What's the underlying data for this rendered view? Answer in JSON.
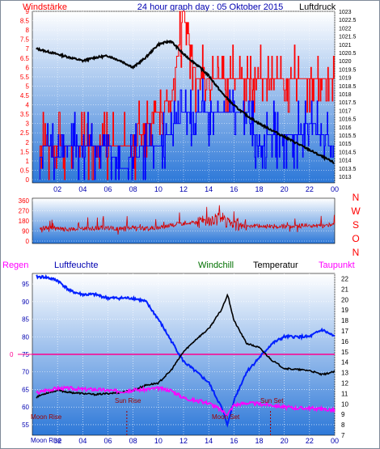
{
  "header": {
    "left": "Windstärke",
    "center": "24 hour graph day : 05 Oktober 2015",
    "right": "Luftdruck"
  },
  "colors": {
    "frame": "#7f8a99",
    "panel_top": "#ffffff",
    "panel_bottom": "#2d78d8",
    "wind_gust": "#ff0000",
    "wind_avg": "#0000ff",
    "pressure": "#000000",
    "direction": "#d80000",
    "humidity": "#0020ff",
    "temperature": "#000000",
    "dewpoint": "#ff00ff",
    "windchill": "#007000",
    "rain_line": "#ff0090",
    "label_red": "#ff0000",
    "label_blue": "#0000b0"
  },
  "chart_data": [
    {
      "type": "line",
      "panel": "wind-pressure",
      "x_ticks": [
        "02",
        "04",
        "06",
        "08",
        "10",
        "12",
        "14",
        "16",
        "18",
        "20",
        "22",
        "00"
      ],
      "left_axis_label": "Windstärke",
      "right_axis_label": "Luftdruck",
      "left_ticks": [
        "0",
        "0.5",
        "1",
        "1.5",
        "2",
        "2.5",
        "3",
        "3.5",
        "4",
        "4.5",
        "5",
        "5.5",
        "6",
        "6.5",
        "7",
        "7.5",
        "8",
        "8.5",
        "9"
      ],
      "right_ticks": [
        "1013",
        "1013.5",
        "1014",
        "1014.5",
        "1015",
        "1015.5",
        "1016",
        "1016.5",
        "1017",
        "1017.5",
        "1018",
        "1018.5",
        "1019",
        "1019.5",
        "1020",
        "1020.5",
        "1021",
        "1021.5",
        "1022",
        "1022.5",
        "1023"
      ],
      "ylim_left": [
        0,
        9
      ],
      "ylim_right": [
        1013,
        1023
      ],
      "series": [
        {
          "role": "gust",
          "x": [
            0,
            1,
            2,
            3,
            4,
            5,
            6,
            7,
            8,
            9,
            10,
            11,
            12,
            13,
            14,
            15,
            16,
            17,
            18,
            19,
            20,
            21,
            22,
            23,
            24
          ],
          "values": [
            1.8,
            1.8,
            1.8,
            1.8,
            1.8,
            1.8,
            1.8,
            2.0,
            1.8,
            3.0,
            3.6,
            4.2,
            9.0,
            5.5,
            5.5,
            5.5,
            5.5,
            5.5,
            5.5,
            5.5,
            5.5,
            5.5,
            5.5,
            5.5,
            5.5
          ]
        },
        {
          "role": "average",
          "x": [
            0,
            1,
            2,
            3,
            4,
            5,
            6,
            7,
            8,
            9,
            10,
            11,
            12,
            13,
            14,
            15,
            16,
            17,
            18,
            19,
            20,
            21,
            22,
            23,
            24
          ],
          "values": [
            0,
            1.8,
            1.2,
            1.8,
            1.8,
            1.5,
            1.8,
            0.5,
            1.2,
            1.8,
            1.8,
            2.5,
            3.5,
            3.5,
            3.5,
            3.5,
            3.5,
            3.5,
            1.8,
            2.4,
            2.4,
            2.4,
            3.0,
            2.4,
            1.8
          ]
        },
        {
          "role": "pressure",
          "x": [
            0,
            1,
            2,
            3,
            4,
            5,
            6,
            7,
            8,
            9,
            10,
            11,
            12,
            13,
            14,
            15,
            16,
            17,
            18,
            19,
            20,
            21,
            22,
            23,
            24
          ],
          "values": [
            1020.8,
            1020.6,
            1020.4,
            1020.2,
            1020.0,
            1020.2,
            1020.3,
            1020.0,
            1019.6,
            1020.2,
            1021.0,
            1021.2,
            1020.4,
            1019.8,
            1019.1,
            1018.1,
            1017.3,
            1016.7,
            1016.2,
            1015.8,
            1015.4,
            1015.0,
            1014.6,
            1014.2,
            1013.8
          ]
        }
      ]
    },
    {
      "type": "line",
      "panel": "wind-direction",
      "right_labels": [
        "N",
        "W",
        "S",
        "O",
        "N"
      ],
      "left_ticks": [
        "0",
        "90",
        "180",
        "270",
        "360"
      ],
      "ylim": [
        0,
        360
      ],
      "x": [
        0,
        1,
        2,
        3,
        4,
        5,
        6,
        7,
        8,
        9,
        10,
        11,
        12,
        13,
        14,
        15,
        16,
        17,
        18,
        19,
        20,
        21,
        22,
        23,
        24
      ],
      "values": [
        100,
        120,
        110,
        100,
        110,
        115,
        120,
        105,
        120,
        110,
        120,
        140,
        160,
        170,
        180,
        200,
        150,
        140,
        135,
        130,
        130,
        135,
        140,
        130,
        150
      ]
    },
    {
      "type": "line",
      "panel": "temperature-humidity",
      "labels": {
        "rain": "Regen",
        "humidity": "Luftfeuchte",
        "windchill": "Windchill",
        "temperature": "Temperatur",
        "dewpoint": "Taupunkt"
      },
      "left_ticks": [
        "55",
        "60",
        "65",
        "70",
        "75",
        "80",
        "85",
        "90",
        "95"
      ],
      "right_ticks": [
        "7",
        "8",
        "9",
        "10",
        "11",
        "12",
        "13",
        "14",
        "15",
        "16",
        "17",
        "18",
        "19",
        "20",
        "21",
        "22"
      ],
      "rain_label": "0",
      "ylim_left": [
        52,
        98
      ],
      "ylim_right": [
        7,
        22.5
      ],
      "x_ticks": [
        "02",
        "04",
        "06",
        "08",
        "10",
        "12",
        "14",
        "16",
        "18",
        "20",
        "22",
        "00"
      ],
      "annotations": [
        {
          "text": "Moon Rise",
          "x": 0.3
        },
        {
          "text": "Sun Rise",
          "x": 7.5
        },
        {
          "text": "Moon Set",
          "x": 15.8
        },
        {
          "text": "Sun Set",
          "x": 18.9
        },
        {
          "text": "Moon Rise",
          "x": 0.9
        }
      ],
      "series": [
        {
          "role": "humidity",
          "x": [
            0,
            1,
            2,
            3,
            4,
            5,
            6,
            7,
            8,
            9,
            10,
            11,
            12,
            13,
            14,
            15,
            15.5,
            16,
            17,
            18,
            19,
            20,
            21,
            22,
            23,
            24
          ],
          "values": [
            97,
            97,
            96,
            93,
            92,
            92,
            91,
            91,
            91,
            90,
            85,
            79,
            73,
            70,
            67,
            60,
            55,
            62,
            70,
            74,
            78,
            80,
            80,
            80,
            82,
            80
          ]
        },
        {
          "role": "temperature",
          "x": [
            0,
            1,
            2,
            3,
            4,
            5,
            6,
            7,
            8,
            9,
            10,
            11,
            12,
            13,
            14,
            15,
            15.5,
            16,
            17,
            18,
            19,
            20,
            21,
            22,
            23,
            24
          ],
          "values": [
            10.5,
            11.0,
            11.3,
            11.1,
            11.0,
            10.9,
            11.0,
            11.1,
            11.3,
            11.8,
            12.0,
            13.2,
            15.0,
            16.2,
            17.2,
            19.0,
            20.5,
            18.0,
            15.8,
            15.4,
            14.2,
            13.4,
            13.3,
            13.2,
            12.8,
            13.1
          ]
        },
        {
          "role": "dewpoint",
          "x": [
            0,
            1,
            2,
            3,
            4,
            5,
            6,
            7,
            8,
            9,
            10,
            11,
            12,
            13,
            14,
            15,
            15.5,
            16,
            17,
            18,
            19,
            20,
            21,
            22,
            23,
            24
          ],
          "values": [
            10.9,
            11.3,
            11.5,
            11.5,
            11.4,
            11.4,
            11.3,
            11.2,
            11.3,
            11.4,
            11.5,
            11.3,
            10.6,
            10.3,
            10.1,
            9.4,
            9.0,
            9.9,
            10.1,
            10.0,
            9.9,
            9.7,
            9.6,
            9.6,
            9.5,
            9.4
          ]
        }
      ]
    }
  ]
}
